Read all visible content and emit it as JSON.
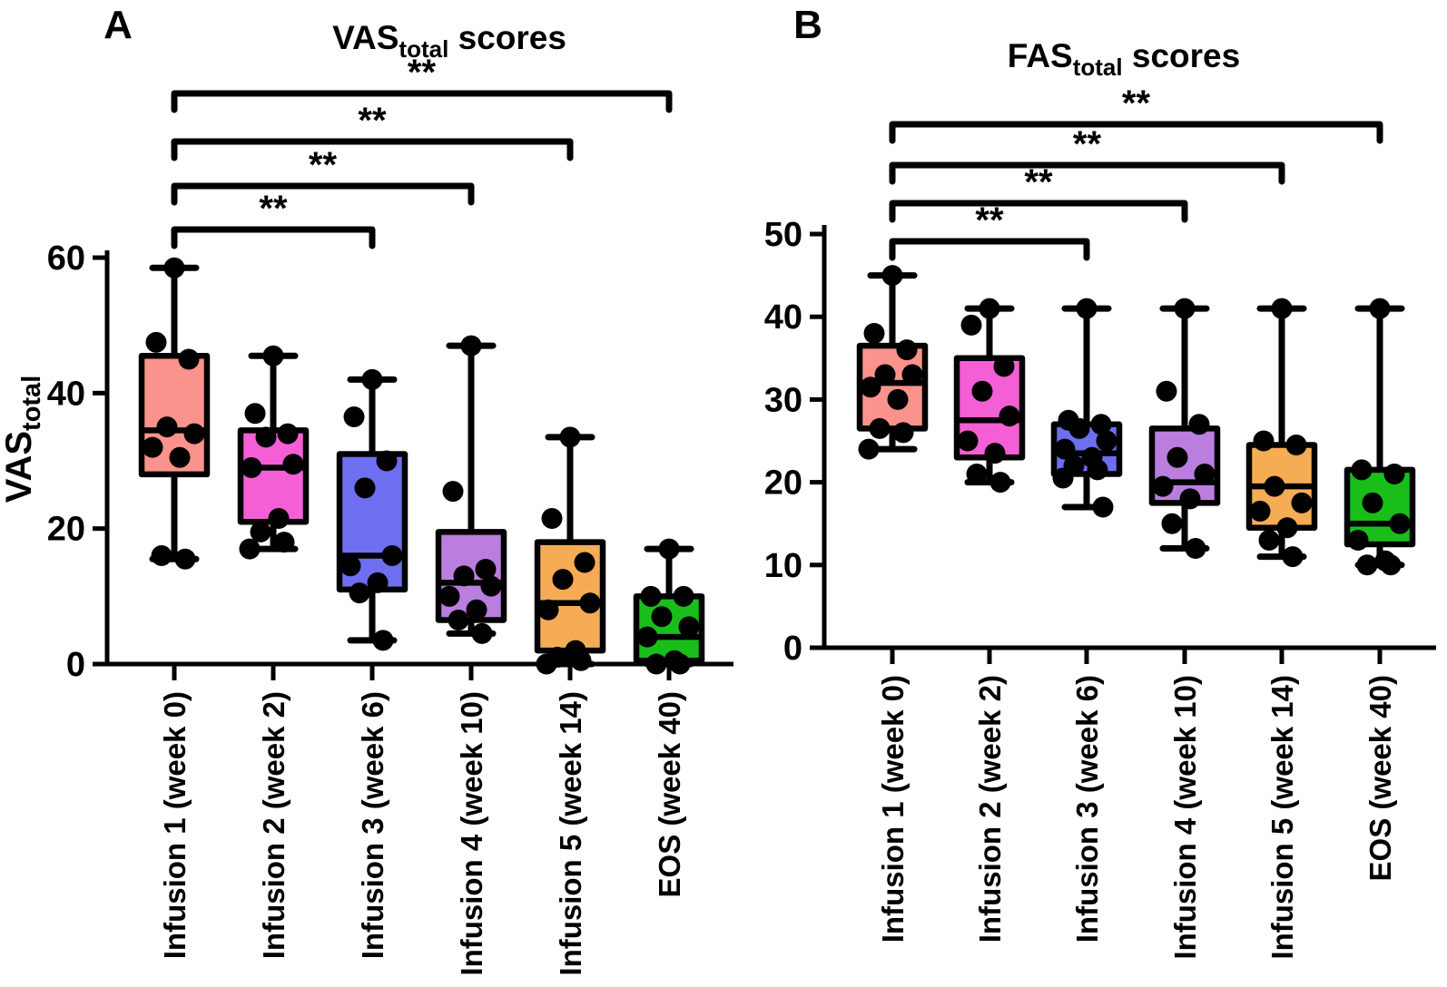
{
  "figure": {
    "description": "Two-panel box plot figure of VAS and FAS total scores across infusion visits",
    "panel_letters": [
      "A",
      "B"
    ]
  },
  "chart_data": [
    {
      "type": "box",
      "panel_label": "A",
      "title": {
        "main": "VAS",
        "subscript": "total",
        "suffix": " scores"
      },
      "y_axis": {
        "title_main": "VAS",
        "title_subscript": "total",
        "ticks": [
          0,
          20,
          40,
          60
        ],
        "range": [
          0,
          60
        ]
      },
      "categories": [
        "Infusion 1 (week 0)",
        "Infusion 2 (week 2)",
        "Infusion 3 (week 6)",
        "Infusion 4 (week 10)",
        "Infusion 5 (week 14)",
        "EOS (week 40)"
      ],
      "significance_brackets": [
        {
          "from_category": 0,
          "to_category": 5,
          "label": "**"
        },
        {
          "from_category": 0,
          "to_category": 4,
          "label": "**"
        },
        {
          "from_category": 0,
          "to_category": 3,
          "label": "**"
        },
        {
          "from_category": 0,
          "to_category": 2,
          "label": "**"
        }
      ],
      "boxes": [
        {
          "category": "Infusion 1 (week 0)",
          "color": "#FA938B",
          "whisker_low": 15.5,
          "q1": 28,
          "median": 34.5,
          "q3": 45.5,
          "whisker_high": 58.5,
          "points": [
            58.5,
            47.5,
            45,
            35,
            34,
            32,
            30.5,
            16,
            15.5
          ]
        },
        {
          "category": "Infusion 2 (week 2)",
          "color": "#F45FD5",
          "whisker_low": 17,
          "q1": 21,
          "median": 29,
          "q3": 34.5,
          "whisker_high": 45.5,
          "points": [
            45.5,
            37,
            34,
            33.5,
            29.5,
            29,
            21.5,
            19.5,
            18,
            17
          ]
        },
        {
          "category": "Infusion 3 (week 6)",
          "color": "#6E6EF0",
          "whisker_low": 3.5,
          "q1": 11,
          "median": 16,
          "q3": 31,
          "whisker_high": 42,
          "points": [
            42,
            36.5,
            30,
            26,
            16,
            14.5,
            12,
            10.5,
            3.5
          ]
        },
        {
          "category": "Infusion 4 (week 10)",
          "color": "#BA7EDE",
          "whisker_low": 4.5,
          "q1": 6.5,
          "median": 12,
          "q3": 19.5,
          "whisker_high": 47,
          "points": [
            47,
            25.5,
            14,
            13,
            11.5,
            10,
            8,
            6.5,
            4.5
          ]
        },
        {
          "category": "Infusion 5 (week 14)",
          "color": "#F5AC55",
          "whisker_low": 0,
          "q1": 2,
          "median": 9,
          "q3": 18,
          "whisker_high": 33.5,
          "points": [
            33.5,
            21.5,
            15,
            12.5,
            9,
            8,
            2,
            1,
            0.5,
            0
          ]
        },
        {
          "category": "EOS (week 40)",
          "color": "#1ABE1A",
          "whisker_low": 0,
          "q1": 0.5,
          "median": 4,
          "q3": 10,
          "whisker_high": 17,
          "points": [
            17,
            10,
            10,
            7,
            5.5,
            4,
            0.5,
            0,
            0
          ]
        }
      ]
    },
    {
      "type": "box",
      "panel_label": "B",
      "title": {
        "main": "FAS",
        "subscript": "total",
        "suffix": " scores"
      },
      "y_axis": {
        "title_main": "",
        "title_subscript": "",
        "ticks": [
          0,
          10,
          20,
          30,
          40,
          50
        ],
        "range": [
          0,
          50
        ]
      },
      "categories": [
        "Infusion 1 (week 0)",
        "Infusion 2 (week 2)",
        "Infusion 3 (week 6)",
        "Infusion 4 (week 10)",
        "Infusion 5 (week 14)",
        "EOS (week 40)"
      ],
      "significance_brackets": [
        {
          "from_category": 0,
          "to_category": 5,
          "label": "**"
        },
        {
          "from_category": 0,
          "to_category": 4,
          "label": "**"
        },
        {
          "from_category": 0,
          "to_category": 3,
          "label": "**"
        },
        {
          "from_category": 0,
          "to_category": 2,
          "label": "**"
        }
      ],
      "boxes": [
        {
          "category": "Infusion 1 (week 0)",
          "color": "#FA938B",
          "whisker_low": 24,
          "q1": 26.5,
          "median": 32,
          "q3": 36.5,
          "whisker_high": 45,
          "points": [
            45,
            38,
            36,
            33,
            33,
            31.5,
            30,
            26.5,
            26,
            24
          ]
        },
        {
          "category": "Infusion 2 (week 2)",
          "color": "#F45FD5",
          "whisker_low": 20,
          "q1": 23,
          "median": 27.5,
          "q3": 35,
          "whisker_high": 41,
          "points": [
            41,
            39,
            34,
            31,
            28,
            25,
            23.5,
            21,
            20
          ]
        },
        {
          "category": "Infusion 3 (week 6)",
          "color": "#6E6EF0",
          "whisker_low": 17,
          "q1": 21,
          "median": 23.5,
          "q3": 27,
          "whisker_high": 41,
          "points": [
            41,
            27.5,
            27,
            26.5,
            25,
            24,
            23,
            22,
            21.5,
            20.5,
            17
          ]
        },
        {
          "category": "Infusion 4 (week 10)",
          "color": "#BA7EDE",
          "whisker_low": 12,
          "q1": 17.5,
          "median": 20,
          "q3": 26.5,
          "whisker_high": 41,
          "points": [
            41,
            31,
            27,
            23,
            21,
            19.5,
            18,
            15,
            12
          ]
        },
        {
          "category": "Infusion 5 (week 14)",
          "color": "#F5AC55",
          "whisker_low": 11,
          "q1": 14.5,
          "median": 19.5,
          "q3": 24.5,
          "whisker_high": 41,
          "points": [
            41,
            25,
            24.5,
            19.5,
            17.5,
            16.5,
            14.5,
            13,
            11
          ]
        },
        {
          "category": "EOS (week 40)",
          "color": "#1ABE1A",
          "whisker_low": 10,
          "q1": 12.5,
          "median": 15,
          "q3": 21.5,
          "whisker_high": 41,
          "points": [
            41,
            21.5,
            21,
            17.5,
            15,
            13,
            10.5,
            10,
            10
          ]
        }
      ]
    }
  ]
}
